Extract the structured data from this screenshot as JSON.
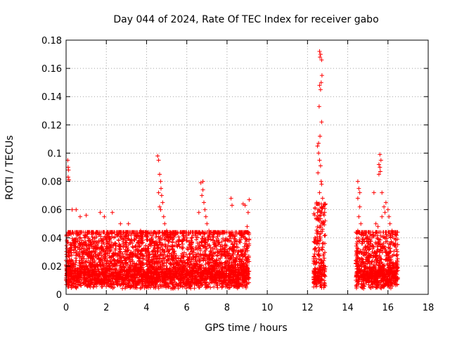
{
  "chart_data": {
    "type": "scatter",
    "title": "Day 044 of 2024, Rate Of TEC Index for receiver gabo",
    "xlabel": "GPS time / hours",
    "ylabel": "ROTI / TECUs",
    "xlim": [
      0,
      18
    ],
    "ylim": [
      0,
      0.18
    ],
    "xticks": [
      0,
      2,
      4,
      6,
      8,
      10,
      12,
      14,
      16,
      18
    ],
    "xtick_labels": [
      "0",
      "2",
      "4",
      "6",
      "8",
      "10",
      "12",
      "14",
      "16",
      "18"
    ],
    "yticks": [
      0,
      0.02,
      0.04,
      0.06,
      0.08,
      0.1,
      0.12,
      0.14,
      0.16,
      0.18
    ],
    "ytick_labels": [
      "0",
      "0.02",
      "0.04",
      "0.06",
      "0.08",
      "0.1",
      "0.12",
      "0.14",
      "0.16",
      "0.18"
    ],
    "grid": true,
    "marker": "+",
    "color": "#ff0000",
    "segments": [
      {
        "start": 0.0,
        "end": 9.1,
        "typical_max": 0.04
      },
      {
        "start": 12.3,
        "end": 12.9,
        "typical_max": 0.06
      },
      {
        "start": 14.4,
        "end": 16.5,
        "typical_max": 0.04
      }
    ],
    "spikes": [
      [
        0.08,
        0.095
      ],
      [
        0.1,
        0.09
      ],
      [
        0.12,
        0.088
      ],
      [
        0.1,
        0.083
      ],
      [
        0.14,
        0.081
      ],
      [
        0.3,
        0.06
      ],
      [
        0.5,
        0.06
      ],
      [
        0.7,
        0.055
      ],
      [
        1.0,
        0.056
      ],
      [
        1.7,
        0.058
      ],
      [
        1.9,
        0.055
      ],
      [
        2.3,
        0.058
      ],
      [
        2.7,
        0.05
      ],
      [
        3.1,
        0.05
      ],
      [
        3.7,
        0.045
      ],
      [
        4.55,
        0.098
      ],
      [
        4.6,
        0.095
      ],
      [
        4.65,
        0.085
      ],
      [
        4.7,
        0.08
      ],
      [
        4.72,
        0.075
      ],
      [
        4.75,
        0.07
      ],
      [
        4.8,
        0.065
      ],
      [
        4.7,
        0.06
      ],
      [
        4.85,
        0.055
      ],
      [
        4.9,
        0.05
      ],
      [
        5.0,
        0.045
      ],
      [
        5.1,
        0.04
      ],
      [
        4.6,
        0.072
      ],
      [
        4.65,
        0.062
      ],
      [
        6.7,
        0.079
      ],
      [
        6.8,
        0.08
      ],
      [
        6.75,
        0.07
      ],
      [
        6.85,
        0.065
      ],
      [
        6.9,
        0.06
      ],
      [
        6.95,
        0.055
      ],
      [
        7.0,
        0.05
      ],
      [
        6.6,
        0.058
      ],
      [
        7.1,
        0.045
      ],
      [
        6.8,
        0.074
      ],
      [
        8.2,
        0.068
      ],
      [
        8.25,
        0.063
      ],
      [
        8.8,
        0.064
      ],
      [
        8.9,
        0.063
      ],
      [
        9.1,
        0.067
      ],
      [
        9.05,
        0.058
      ],
      [
        8.7,
        0.04
      ],
      [
        9.0,
        0.048
      ],
      [
        8.95,
        0.035
      ],
      [
        12.6,
        0.172
      ],
      [
        12.65,
        0.17
      ],
      [
        12.62,
        0.168
      ],
      [
        12.7,
        0.166
      ],
      [
        12.72,
        0.155
      ],
      [
        12.68,
        0.15
      ],
      [
        12.6,
        0.148
      ],
      [
        12.65,
        0.145
      ],
      [
        12.58,
        0.133
      ],
      [
        12.7,
        0.122
      ],
      [
        12.62,
        0.112
      ],
      [
        12.55,
        0.107
      ],
      [
        12.5,
        0.105
      ],
      [
        12.55,
        0.1
      ],
      [
        12.6,
        0.095
      ],
      [
        12.65,
        0.091
      ],
      [
        12.52,
        0.086
      ],
      [
        12.68,
        0.08
      ],
      [
        12.7,
        0.078
      ],
      [
        12.6,
        0.072
      ],
      [
        12.45,
        0.065
      ],
      [
        12.75,
        0.068
      ],
      [
        12.5,
        0.058
      ],
      [
        12.7,
        0.062
      ],
      [
        14.5,
        0.08
      ],
      [
        14.55,
        0.075
      ],
      [
        14.6,
        0.072
      ],
      [
        14.5,
        0.068
      ],
      [
        14.6,
        0.062
      ],
      [
        14.55,
        0.055
      ],
      [
        14.65,
        0.05
      ],
      [
        14.5,
        0.045
      ],
      [
        15.3,
        0.072
      ],
      [
        15.6,
        0.099
      ],
      [
        15.65,
        0.095
      ],
      [
        15.55,
        0.092
      ],
      [
        15.6,
        0.09
      ],
      [
        15.62,
        0.087
      ],
      [
        15.55,
        0.085
      ],
      [
        15.7,
        0.072
      ],
      [
        15.9,
        0.065
      ],
      [
        16.0,
        0.06
      ],
      [
        15.85,
        0.058
      ],
      [
        16.05,
        0.055
      ],
      [
        16.1,
        0.05
      ],
      [
        15.7,
        0.055
      ],
      [
        15.4,
        0.05
      ],
      [
        15.8,
        0.062
      ],
      [
        16.2,
        0.045
      ],
      [
        15.5,
        0.048
      ],
      [
        15.2,
        0.04
      ],
      [
        14.9,
        0.042
      ]
    ]
  }
}
